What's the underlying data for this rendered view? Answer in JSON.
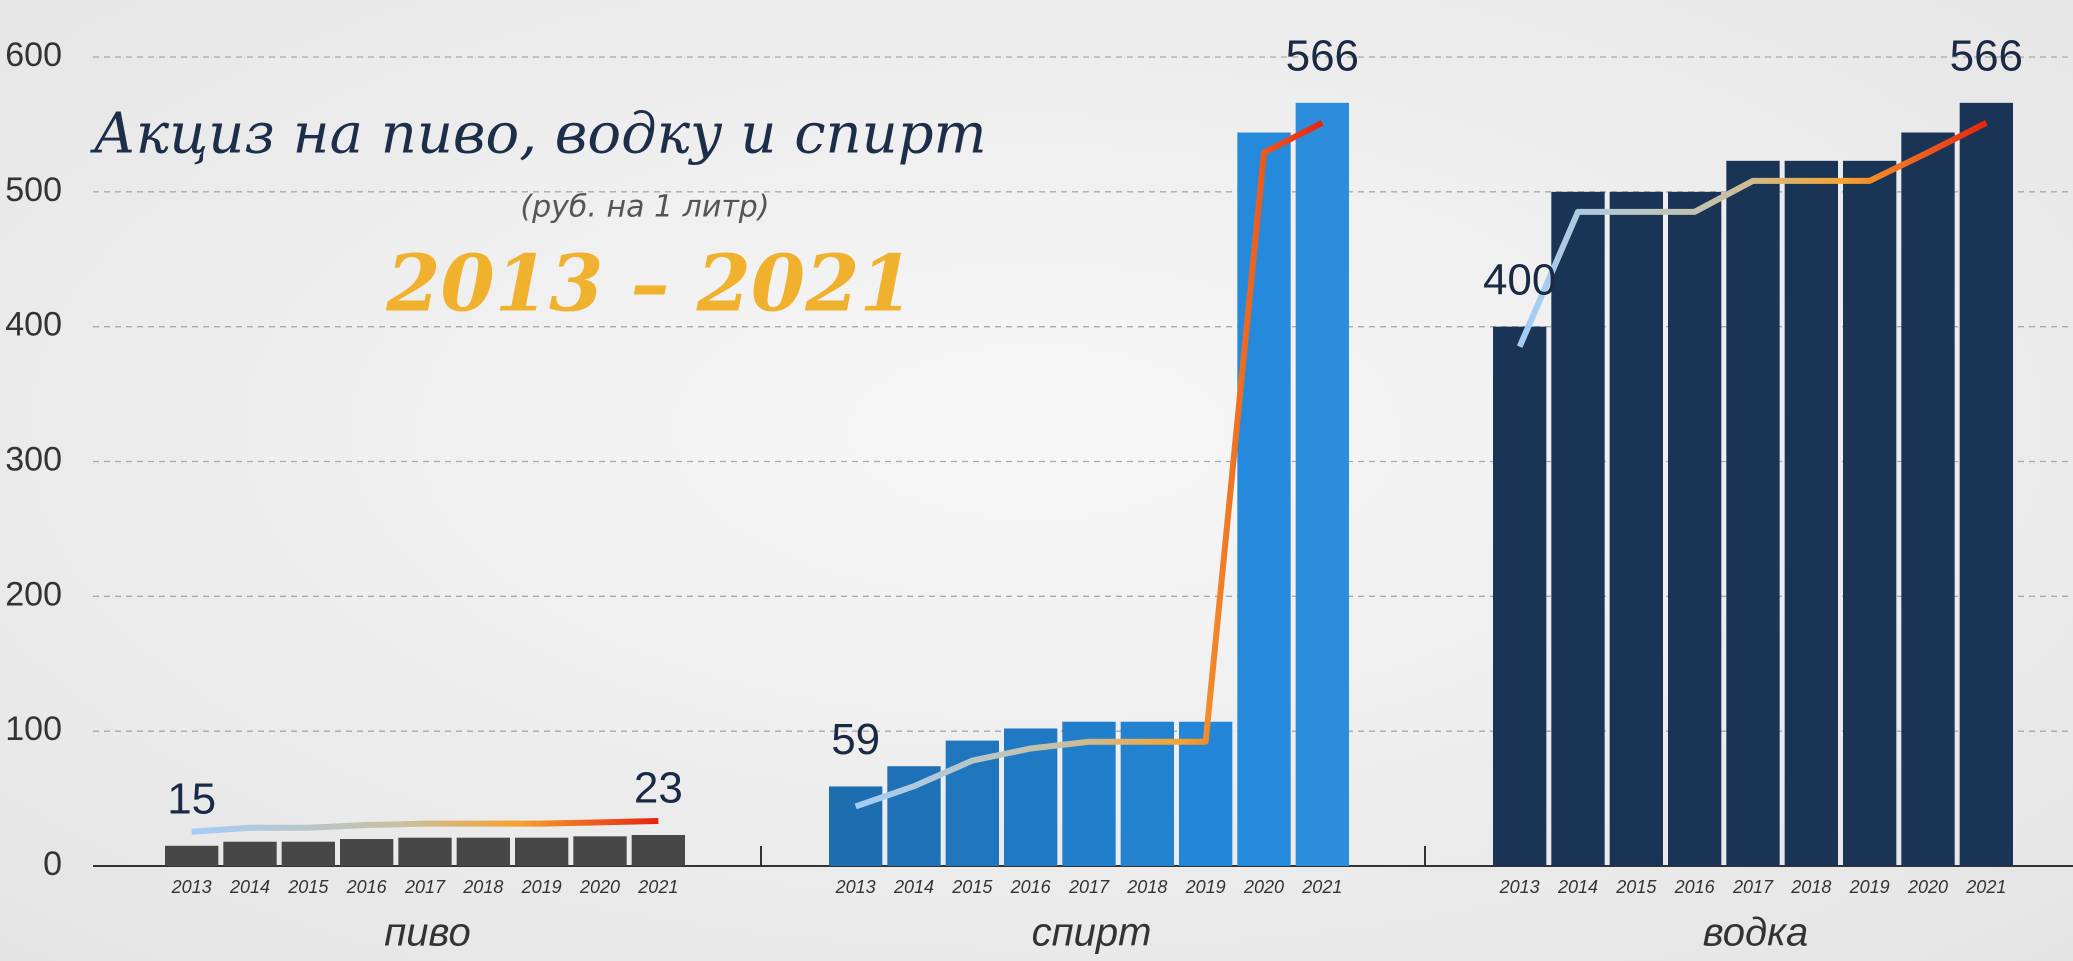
{
  "chart_data": {
    "type": "grouped_bar",
    "title": "Акциз на пиво, водку и спирт",
    "subtitle": "(руб. на 1 литр)",
    "period": "2013 – 2021",
    "categories": [
      "2013",
      "2014",
      "2015",
      "2016",
      "2017",
      "2018",
      "2019",
      "2020",
      "2021"
    ],
    "series": [
      {
        "name": "пиво",
        "color": "#474747",
        "values": [
          15,
          18,
          18,
          20,
          21,
          21,
          21,
          22,
          23
        ],
        "labeled_points": [
          0,
          8
        ]
      },
      {
        "name": "спирт",
        "color": "#1f82cc",
        "values": [
          59,
          74,
          93,
          102,
          107,
          107,
          107,
          544,
          566
        ],
        "labeled_points": [
          0,
          8
        ]
      },
      {
        "name": "водка",
        "color": "#1a3455",
        "values": [
          400,
          500,
          500,
          500,
          523,
          523,
          523,
          544,
          566
        ],
        "labeled_points": [
          0,
          8
        ]
      }
    ],
    "ylim": [
      0,
      600
    ],
    "yticks": [
      0,
      100,
      200,
      300,
      400,
      500,
      600
    ],
    "grid": true
  }
}
